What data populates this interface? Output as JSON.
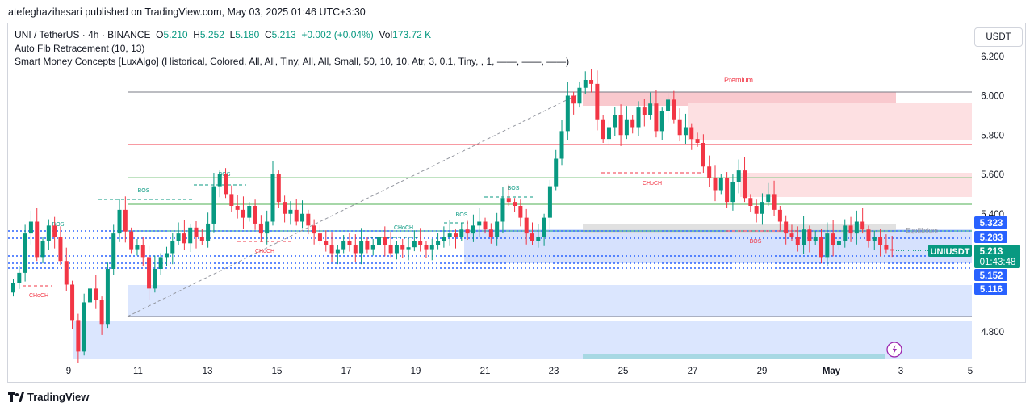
{
  "publisher": "atefeghazihesari published on TradingView.com, May 03, 2025 01:46 UTC+3:30",
  "legend": {
    "symbol": "UNI / TetherUS · 4h · BINANCE",
    "o_label": "O",
    "o": "5.210",
    "h_label": "H",
    "h": "5.252",
    "l_label": "L",
    "l": "5.180",
    "c_label": "C",
    "c": "5.213",
    "change": "+0.002 (+0.04%)",
    "vol_label": "Vol",
    "vol": "173.72 K",
    "indicator1": "Auto Fib Retracement (10, 13)",
    "indicator2": "Smart Money Concepts [LuxAlgo] (Historical, Colored, All, All, Tiny, All, All, Small, 50, 10, 10, Atr, 3, 0.1, Tiny, , 1, ——, ——, ——)"
  },
  "currency": "USDT",
  "brand": "TradingView",
  "colors": {
    "up": "#089981",
    "down": "#f23645",
    "premium": "#f23645",
    "discount": "#2962ff"
  },
  "chart_data": {
    "type": "candlestick",
    "ylim": [
      4.64,
      6.24
    ],
    "x_ticks": [
      "9",
      "11",
      "13",
      "15",
      "17",
      "19",
      "21",
      "23",
      "25",
      "27",
      "29",
      "May",
      "3",
      "5"
    ],
    "y_ticks": [
      "6.200",
      "6.000",
      "5.800",
      "5.600",
      "5.400",
      "4.800"
    ],
    "last_price": "5.213",
    "countdown": "01:43:48",
    "symbol_tag": "UNIUSDT",
    "price_labels": [
      "5.323",
      "5.283",
      "5.152",
      "5.116"
    ],
    "zone_labels": [
      "Premium",
      "Equilibrium"
    ],
    "structure_labels": [
      "BOS",
      "CHoCH",
      "BOS",
      "BOS",
      "CHoCH",
      "CHoCH",
      "BOS",
      "BOS",
      "CHoCH",
      "BOS"
    ],
    "closes": [
      5.05,
      5.1,
      5.3,
      5.36,
      5.18,
      5.26,
      5.34,
      5.28,
      5.16,
      5.04,
      4.86,
      4.7,
      4.95,
      5.02,
      4.96,
      4.84,
      5.12,
      5.3,
      5.42,
      5.31,
      5.22,
      5.24,
      5.18,
      5.02,
      5.12,
      5.18,
      5.2,
      5.26,
      5.3,
      5.25,
      5.33,
      5.28,
      5.26,
      5.35,
      5.54,
      5.6,
      5.5,
      5.44,
      5.42,
      5.38,
      5.44,
      5.35,
      5.3,
      5.36,
      5.6,
      5.46,
      5.4,
      5.42,
      5.36,
      5.4,
      5.34,
      5.3,
      5.26,
      5.24,
      5.2,
      5.22,
      5.26,
      5.24,
      5.2,
      5.26,
      5.22,
      5.24,
      5.28,
      5.24,
      5.2,
      5.24,
      5.22,
      5.23,
      5.26,
      5.24,
      5.22,
      5.24,
      5.26,
      5.28,
      5.3,
      5.28,
      5.32,
      5.3,
      5.34,
      5.36,
      5.32,
      5.28,
      5.36,
      5.48,
      5.46,
      5.44,
      5.38,
      5.3,
      5.26,
      5.28,
      5.38,
      5.54,
      5.68,
      5.82,
      6.0,
      5.96,
      6.04,
      6.08,
      6.06,
      5.88,
      5.78,
      5.84,
      5.9,
      5.8,
      5.88,
      5.84,
      5.94,
      5.9,
      5.96,
      5.82,
      5.92,
      5.98,
      5.88,
      5.8,
      5.84,
      5.78,
      5.76,
      5.64,
      5.58,
      5.52,
      5.58,
      5.46,
      5.56,
      5.62,
      5.48,
      5.44,
      5.4,
      5.46,
      5.5,
      5.42,
      5.36,
      5.3,
      5.28,
      5.24,
      5.32,
      5.26,
      5.28,
      5.18,
      5.3,
      5.24,
      5.26,
      5.34,
      5.3,
      5.36,
      5.32,
      5.26,
      5.28,
      5.24,
      5.22,
      5.213
    ]
  }
}
